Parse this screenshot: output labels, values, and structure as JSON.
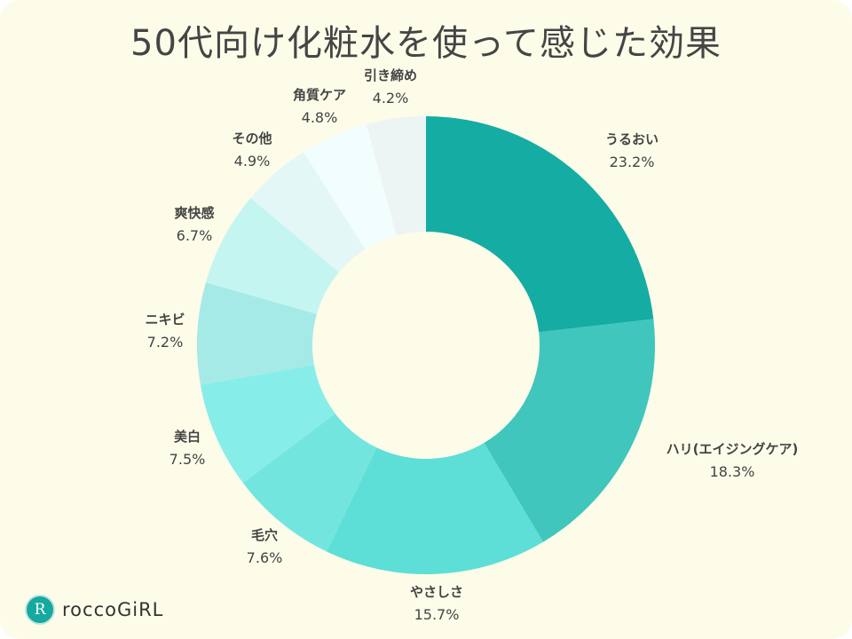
{
  "chart_data": {
    "type": "pie",
    "donut": true,
    "title": "50代向け化粧水を使って感じた効果",
    "categories": [
      "うるおい",
      "ハリ(エイジングケア)",
      "やさしさ",
      "毛穴",
      "美白",
      "ニキビ",
      "爽快感",
      "その他",
      "角質ケア",
      "引き締め"
    ],
    "values": [
      23.2,
      18.3,
      15.7,
      7.6,
      7.5,
      7.2,
      6.7,
      4.9,
      4.8,
      4.2
    ],
    "value_labels": [
      "23.2%",
      "18.3%",
      "15.7%",
      "7.6%",
      "7.5%",
      "7.2%",
      "6.7%",
      "4.9%",
      "4.8%",
      "4.2%"
    ],
    "colors": [
      "#15aca3",
      "#40c6bd",
      "#5ddfd7",
      "#73e5df",
      "#87ede9",
      "#a5eae7",
      "#c4f5f1",
      "#e3f7f6",
      "#f2fdfd",
      "#ecf5f4"
    ],
    "legend": "none"
  },
  "logo": {
    "text": "roccoGiRL",
    "mark": "R"
  },
  "background": "#fdfce9"
}
